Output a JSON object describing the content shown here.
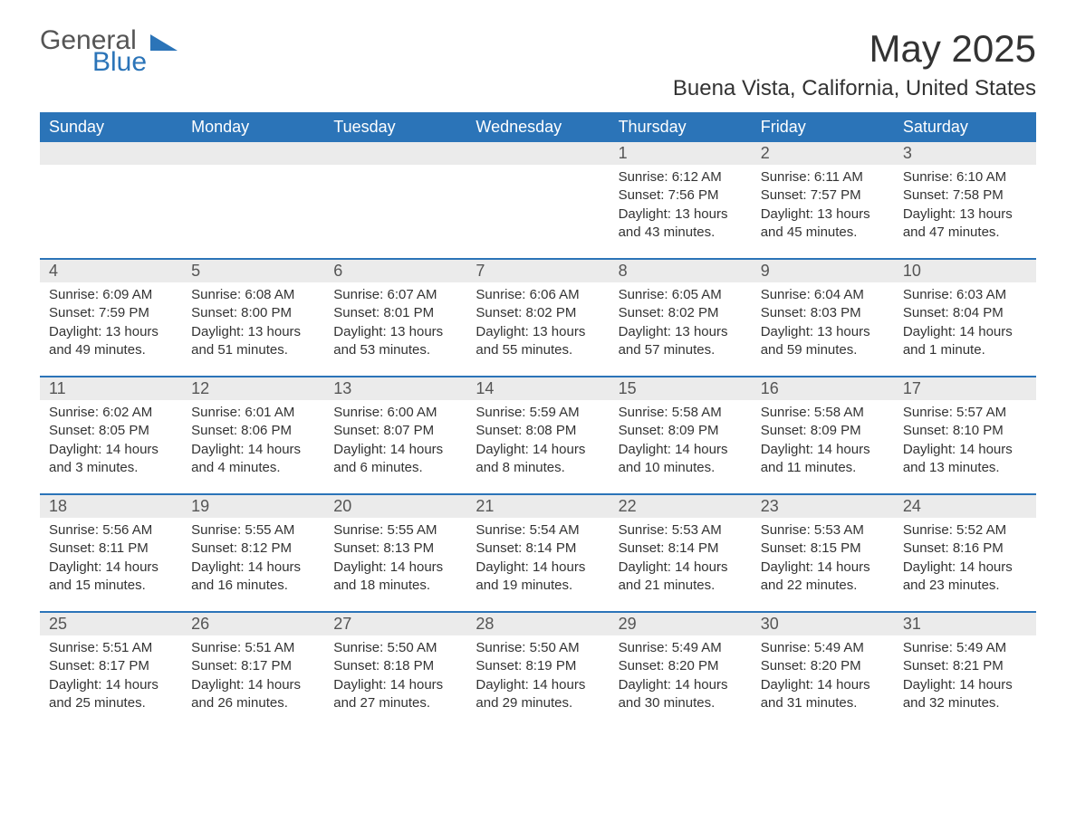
{
  "logo": {
    "part1": "General",
    "part2": "Blue"
  },
  "title": "May 2025",
  "location": "Buena Vista, California, United States",
  "colors": {
    "header_bg": "#2b74b8",
    "header_text": "#ffffff",
    "daynum_bg": "#ebebeb",
    "text": "#333333",
    "divider": "#2b74b8"
  },
  "dow": [
    "Sunday",
    "Monday",
    "Tuesday",
    "Wednesday",
    "Thursday",
    "Friday",
    "Saturday"
  ],
  "labels": {
    "sunrise": "Sunrise:",
    "sunset": "Sunset:",
    "daylight": "Daylight:"
  },
  "weeks": [
    [
      null,
      null,
      null,
      null,
      {
        "n": "1",
        "sr": "6:12 AM",
        "ss": "7:56 PM",
        "dl": "13 hours and 43 minutes."
      },
      {
        "n": "2",
        "sr": "6:11 AM",
        "ss": "7:57 PM",
        "dl": "13 hours and 45 minutes."
      },
      {
        "n": "3",
        "sr": "6:10 AM",
        "ss": "7:58 PM",
        "dl": "13 hours and 47 minutes."
      }
    ],
    [
      {
        "n": "4",
        "sr": "6:09 AM",
        "ss": "7:59 PM",
        "dl": "13 hours and 49 minutes."
      },
      {
        "n": "5",
        "sr": "6:08 AM",
        "ss": "8:00 PM",
        "dl": "13 hours and 51 minutes."
      },
      {
        "n": "6",
        "sr": "6:07 AM",
        "ss": "8:01 PM",
        "dl": "13 hours and 53 minutes."
      },
      {
        "n": "7",
        "sr": "6:06 AM",
        "ss": "8:02 PM",
        "dl": "13 hours and 55 minutes."
      },
      {
        "n": "8",
        "sr": "6:05 AM",
        "ss": "8:02 PM",
        "dl": "13 hours and 57 minutes."
      },
      {
        "n": "9",
        "sr": "6:04 AM",
        "ss": "8:03 PM",
        "dl": "13 hours and 59 minutes."
      },
      {
        "n": "10",
        "sr": "6:03 AM",
        "ss": "8:04 PM",
        "dl": "14 hours and 1 minute."
      }
    ],
    [
      {
        "n": "11",
        "sr": "6:02 AM",
        "ss": "8:05 PM",
        "dl": "14 hours and 3 minutes."
      },
      {
        "n": "12",
        "sr": "6:01 AM",
        "ss": "8:06 PM",
        "dl": "14 hours and 4 minutes."
      },
      {
        "n": "13",
        "sr": "6:00 AM",
        "ss": "8:07 PM",
        "dl": "14 hours and 6 minutes."
      },
      {
        "n": "14",
        "sr": "5:59 AM",
        "ss": "8:08 PM",
        "dl": "14 hours and 8 minutes."
      },
      {
        "n": "15",
        "sr": "5:58 AM",
        "ss": "8:09 PM",
        "dl": "14 hours and 10 minutes."
      },
      {
        "n": "16",
        "sr": "5:58 AM",
        "ss": "8:09 PM",
        "dl": "14 hours and 11 minutes."
      },
      {
        "n": "17",
        "sr": "5:57 AM",
        "ss": "8:10 PM",
        "dl": "14 hours and 13 minutes."
      }
    ],
    [
      {
        "n": "18",
        "sr": "5:56 AM",
        "ss": "8:11 PM",
        "dl": "14 hours and 15 minutes."
      },
      {
        "n": "19",
        "sr": "5:55 AM",
        "ss": "8:12 PM",
        "dl": "14 hours and 16 minutes."
      },
      {
        "n": "20",
        "sr": "5:55 AM",
        "ss": "8:13 PM",
        "dl": "14 hours and 18 minutes."
      },
      {
        "n": "21",
        "sr": "5:54 AM",
        "ss": "8:14 PM",
        "dl": "14 hours and 19 minutes."
      },
      {
        "n": "22",
        "sr": "5:53 AM",
        "ss": "8:14 PM",
        "dl": "14 hours and 21 minutes."
      },
      {
        "n": "23",
        "sr": "5:53 AM",
        "ss": "8:15 PM",
        "dl": "14 hours and 22 minutes."
      },
      {
        "n": "24",
        "sr": "5:52 AM",
        "ss": "8:16 PM",
        "dl": "14 hours and 23 minutes."
      }
    ],
    [
      {
        "n": "25",
        "sr": "5:51 AM",
        "ss": "8:17 PM",
        "dl": "14 hours and 25 minutes."
      },
      {
        "n": "26",
        "sr": "5:51 AM",
        "ss": "8:17 PM",
        "dl": "14 hours and 26 minutes."
      },
      {
        "n": "27",
        "sr": "5:50 AM",
        "ss": "8:18 PM",
        "dl": "14 hours and 27 minutes."
      },
      {
        "n": "28",
        "sr": "5:50 AM",
        "ss": "8:19 PM",
        "dl": "14 hours and 29 minutes."
      },
      {
        "n": "29",
        "sr": "5:49 AM",
        "ss": "8:20 PM",
        "dl": "14 hours and 30 minutes."
      },
      {
        "n": "30",
        "sr": "5:49 AM",
        "ss": "8:20 PM",
        "dl": "14 hours and 31 minutes."
      },
      {
        "n": "31",
        "sr": "5:49 AM",
        "ss": "8:21 PM",
        "dl": "14 hours and 32 minutes."
      }
    ]
  ]
}
